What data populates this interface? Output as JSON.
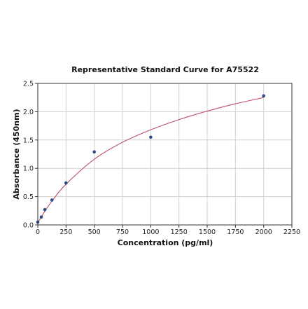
{
  "chart_data": {
    "type": "scatter",
    "title": "Representative Standard Curve for A75522",
    "xlabel": "Concentration (pg/ml)",
    "ylabel": "Absorbance (450nm)",
    "xlim": [
      0,
      2250
    ],
    "ylim": [
      0,
      2.5
    ],
    "x_ticks": [
      0,
      250,
      500,
      750,
      1000,
      1250,
      1500,
      1750,
      2000,
      2250
    ],
    "x_tick_labels": [
      "0",
      "250",
      "500",
      "750",
      "1000",
      "1250",
      "1500",
      "1750",
      "2000",
      "2250"
    ],
    "y_ticks": [
      0,
      0.5,
      1.0,
      1.5,
      2.0,
      2.5
    ],
    "y_tick_labels": [
      "0.0",
      "0.5",
      "1.0",
      "1.5",
      "2.0",
      "2.5"
    ],
    "grid": true,
    "series": [
      {
        "points": [
          {
            "x": 0,
            "y": 0.05
          },
          {
            "x": 31.25,
            "y": 0.14
          },
          {
            "x": 62.5,
            "y": 0.27
          },
          {
            "x": 125,
            "y": 0.44
          },
          {
            "x": 250,
            "y": 0.74
          },
          {
            "x": 500,
            "y": 1.29
          },
          {
            "x": 1000,
            "y": 1.55
          },
          {
            "x": 2000,
            "y": 2.28
          }
        ],
        "color": "#2b4a8b"
      }
    ],
    "fit_curve": {
      "x": [
        0,
        31.25,
        62.5,
        125,
        250,
        500,
        750,
        1000,
        1250,
        1500,
        1750,
        2000
      ],
      "y": [
        0.04,
        0.14,
        0.24,
        0.42,
        0.72,
        1.16,
        1.46,
        1.68,
        1.86,
        2.01,
        2.14,
        2.25
      ],
      "color": "#c0506a"
    }
  }
}
